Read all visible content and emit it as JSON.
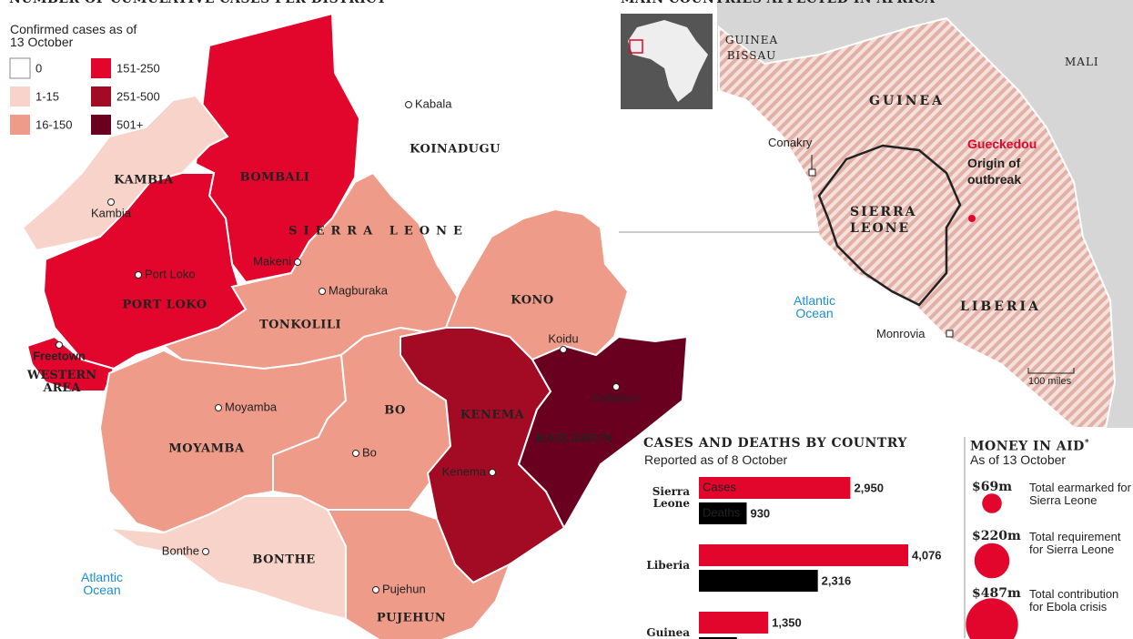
{
  "map": {
    "title": "NUMBER OF CUMULATIVE CASES PER DISTRICT",
    "legend_title": "Confirmed cases as of 13 October",
    "legend": [
      {
        "label": "0",
        "color": "#ffffff"
      },
      {
        "label": "1-15",
        "color": "#f8d3c9"
      },
      {
        "label": "16-150",
        "color": "#ef9b89"
      },
      {
        "label": "151-250",
        "color": "#e2062c"
      },
      {
        "label": "251-500",
        "color": "#a30b25"
      },
      {
        "label": "501+",
        "color": "#690020"
      }
    ],
    "country": "SIERRA LEONE",
    "districts": [
      {
        "name": "KOINADUGU",
        "color": "#ffffff"
      },
      {
        "name": "BOMBALI",
        "color": "#e2062c"
      },
      {
        "name": "KAMBIA",
        "color": "#f8d3c9"
      },
      {
        "name": "PORT LOKO",
        "color": "#e2062c"
      },
      {
        "name": "WESTERN AREA",
        "color": "#e2062c"
      },
      {
        "name": "TONKOLILI",
        "color": "#ef9b89"
      },
      {
        "name": "KONO",
        "color": "#ef9b89"
      },
      {
        "name": "MOYAMBA",
        "color": "#ef9b89"
      },
      {
        "name": "BO",
        "color": "#ef9b89"
      },
      {
        "name": "KENEMA",
        "color": "#a30b25"
      },
      {
        "name": "KAILAHUN",
        "color": "#690020"
      },
      {
        "name": "BONTHE",
        "color": "#f8d3c9"
      },
      {
        "name": "PUJEHUN",
        "color": "#ef9b89"
      }
    ],
    "towns": [
      "Kabala",
      "Kambia",
      "Port Loko",
      "Makeni",
      "Magburaka",
      "Freetown",
      "Koidu",
      "Kailahun",
      "Moyamba",
      "Bo",
      "Kenema",
      "Bonthe",
      "Pujehun"
    ],
    "ocean": "Atlantic Ocean"
  },
  "inset": {
    "title": "MAIN COUNTRIES AFFECTED IN AFRICA",
    "countries": [
      "GUINEA BISSAU",
      "MALI",
      "GUINEA",
      "SIERRA LEONE",
      "LIBERIA"
    ],
    "towns": [
      "Conakry",
      "Monrovia"
    ],
    "origin": "Gueckedou",
    "origin_note": "Origin of outbreak",
    "ocean": "Atlantic Ocean",
    "scale": "100 miles"
  },
  "chart_data": {
    "type": "bar",
    "orientation": "horizontal",
    "title": "CASES AND DEATHS BY COUNTRY",
    "subtitle": "Reported as of 8 October",
    "categories": [
      "Sierra Leone",
      "Liberia",
      "Guinea"
    ],
    "series": [
      {
        "name": "Cases",
        "color": "#e2062c",
        "values": [
          2950,
          4076,
          1350
        ],
        "value_labels": [
          "2,950",
          "4,076",
          "1,350"
        ]
      },
      {
        "name": "Deaths",
        "color": "#000000",
        "values": [
          930,
          2316,
          740
        ],
        "value_labels": [
          "930",
          "2,316",
          null
        ]
      }
    ]
  },
  "aid": {
    "title": "MONEY IN AID",
    "note_mark": "*",
    "subtitle": "As of 13 October",
    "color": "#e2062c",
    "items": [
      {
        "value": 69,
        "label": "$69m",
        "text": "Total earmarked for Sierra Leone"
      },
      {
        "value": 220,
        "label": "$220m",
        "text": "Total requirement for Sierra Leone"
      },
      {
        "value": 487,
        "label": "$487m",
        "text": "Total contribution for Ebola crisis"
      }
    ]
  }
}
